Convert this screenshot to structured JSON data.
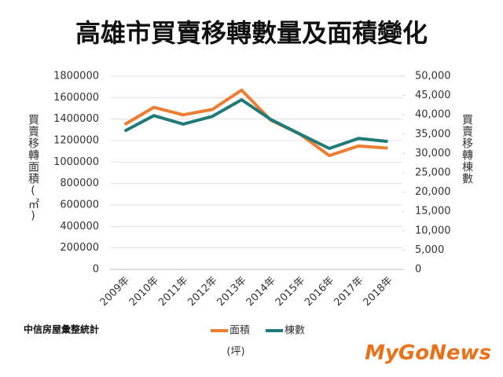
{
  "chart_data": {
    "type": "line",
    "title": "高雄市買賣移轉數量及面積變化",
    "y_label": "買賣移轉面積(㎡)",
    "y2_label": "買賣移轉棟數",
    "source": "中信房屋彙整統計",
    "unit_note": "(坪)",
    "logo": "MyGoNews",
    "categories": [
      "2009年",
      "2010年",
      "2011年",
      "2012年",
      "2013年",
      "2014年",
      "2015年",
      "2016年",
      "2017年",
      "2018年"
    ],
    "series": [
      {
        "name": "面積",
        "color": "#ed7d31",
        "values": [
          1350000,
          1510000,
          1440000,
          1490000,
          1670000,
          1390000,
          1260000,
          1060000,
          1150000,
          1130000
        ]
      },
      {
        "name": "棟數",
        "color": "#1f7a78",
        "axis": "y2",
        "values": [
          35800,
          39800,
          37600,
          39600,
          43900,
          38800,
          35000,
          31300,
          33900,
          33100
        ]
      }
    ],
    "ylim": [
      0,
      1800000
    ],
    "yticks": [
      0,
      200000,
      400000,
      600000,
      800000,
      1000000,
      1200000,
      1400000,
      1600000,
      1800000
    ],
    "y2lim": [
      0,
      50000
    ],
    "y2ticks": [
      0,
      {
        "value": 5000,
        "label": "5,000"
      },
      {
        "value": 10000,
        "label": "10,000"
      },
      {
        "value": 15000,
        "label": "15,000"
      },
      {
        "value": 20000,
        "label": "20,000"
      },
      {
        "value": 25000,
        "label": "25,000"
      },
      {
        "value": 30000,
        "label": "30,000"
      },
      {
        "value": 35000,
        "label": "35,000"
      },
      {
        "value": 40000,
        "label": "40,000"
      },
      {
        "value": 45000,
        "label": "45,000"
      },
      {
        "value": 50000,
        "label": "50,000"
      }
    ],
    "grid": true
  }
}
